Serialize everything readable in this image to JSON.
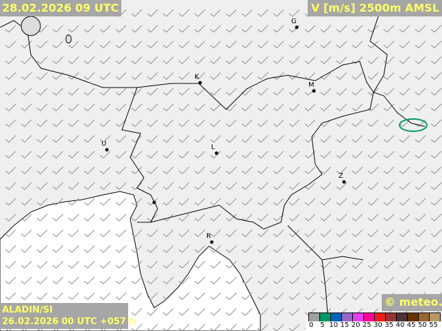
{
  "header": {
    "valid_time": "28.02.2026 09 UTC",
    "parameter": "V [m/s] 2500m AMSL"
  },
  "footer": {
    "model": "ALADIN/SI",
    "run": "26.02.2026 00 UTC +057 h",
    "copyright": "© meteo.si"
  },
  "legend": {
    "unit": "m/s",
    "ticks": [
      "0",
      "5",
      "10",
      "15",
      "20",
      "25",
      "30",
      "35",
      "40",
      "45",
      "50",
      "55"
    ],
    "colors": [
      "#a0a0a0",
      "#009966",
      "#0066bb",
      "#9966cc",
      "#e040f0",
      "#ff0099",
      "#ee1c1c",
      "#993333",
      "#4d3333",
      "#663300",
      "#996633",
      "#bb9966"
    ]
  },
  "cities": [
    {
      "label": "G"
    },
    {
      "label": "K"
    },
    {
      "label": "M"
    },
    {
      "label": "U"
    },
    {
      "label": "L"
    },
    {
      "label": "Z"
    },
    {
      "label": "R"
    }
  ],
  "colors": {
    "land": "#efefef",
    "sea": "#ffffff",
    "barb": "#9a9a9a",
    "border": "#000000",
    "label_bg": "#a6a6a6",
    "label_text": "#ffff66",
    "contour_15": "#009966"
  }
}
